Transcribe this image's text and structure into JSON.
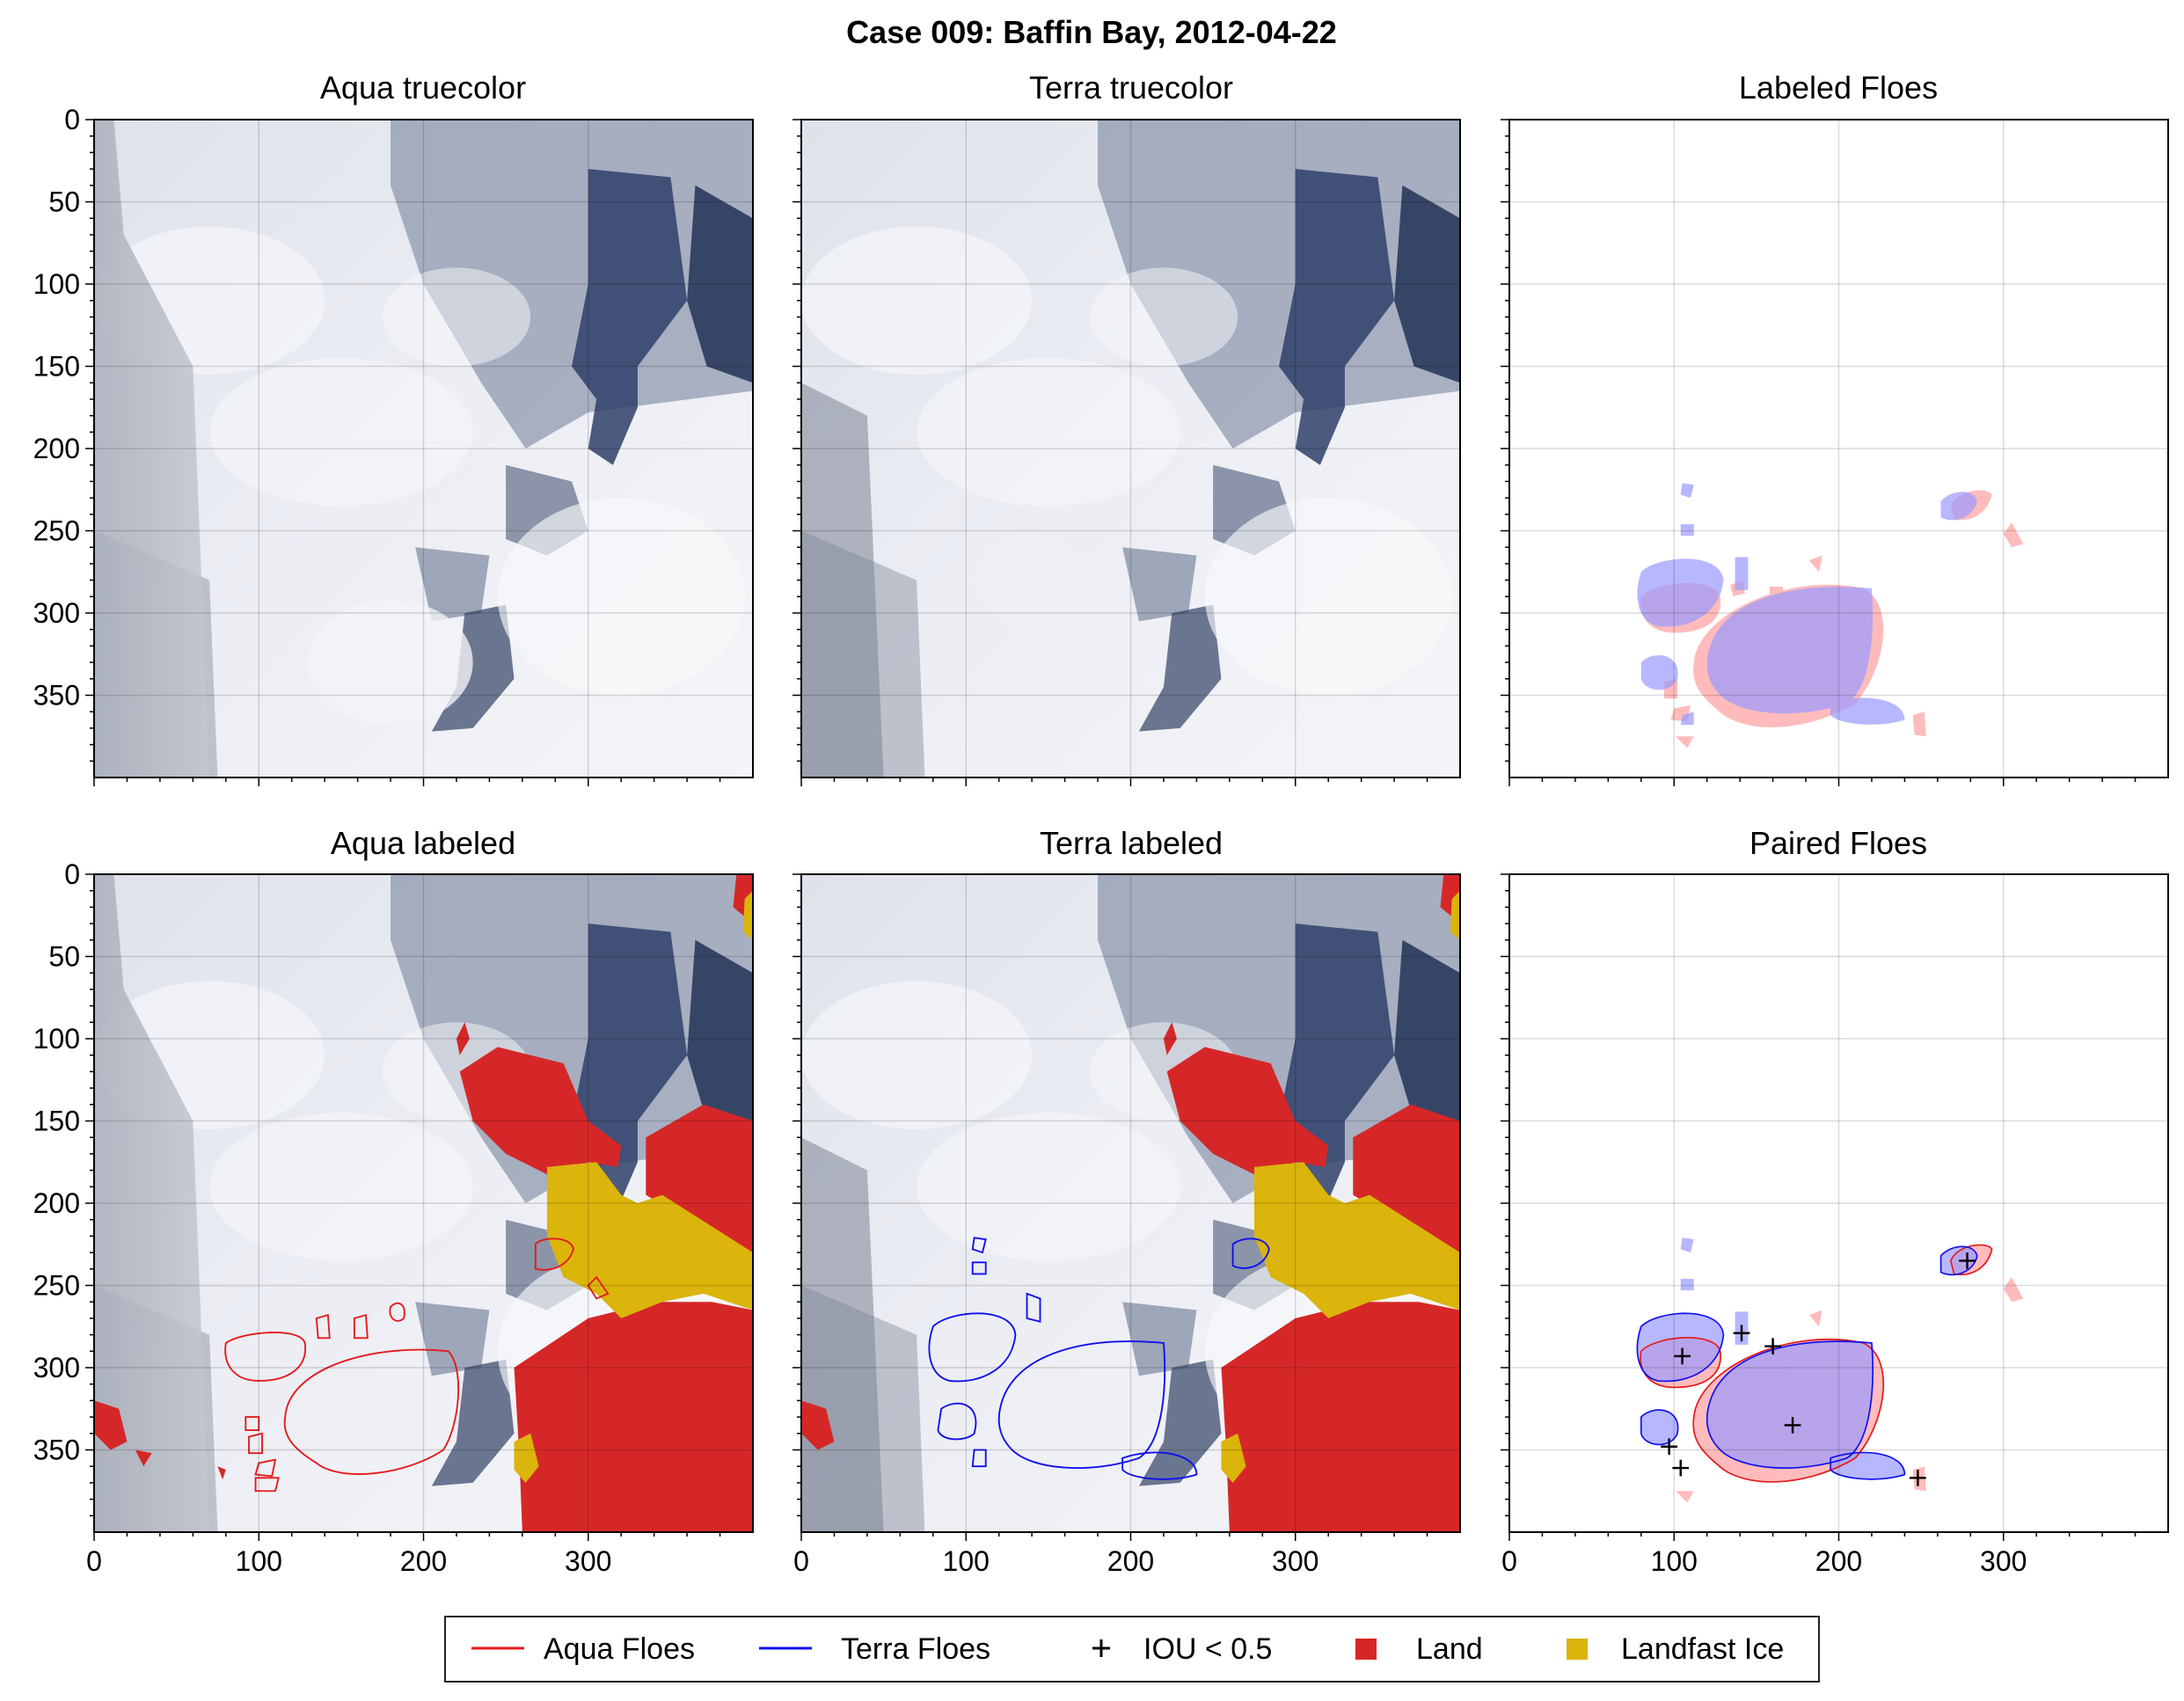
{
  "figure": {
    "title": "Case 009: Baffin Bay, 2012-04-22"
  },
  "colors": {
    "aqua": "#e41a1c",
    "terra": "#1010ee",
    "land": "#d62728",
    "landfast": "#dbb40c",
    "aqua_fill": "#ff9a9a",
    "terra_fill": "#9a9aff",
    "water": "#2a3a5c",
    "ice": "#eef0f5"
  },
  "chart_data": [
    {
      "type": "image",
      "title": "Aqua truecolor",
      "xlim": [
        0,
        400
      ],
      "ylim": [
        400,
        0
      ],
      "xticks": [],
      "yticks": [
        "0",
        "50",
        "100",
        "150",
        "200",
        "250",
        "300",
        "350"
      ],
      "grid": true
    },
    {
      "type": "image",
      "title": "Terra truecolor",
      "xlim": [
        0,
        400
      ],
      "ylim": [
        400,
        0
      ],
      "xticks": [],
      "yticks": [],
      "grid": true
    },
    {
      "type": "map",
      "title": "Labeled Floes",
      "xlim": [
        0,
        400
      ],
      "ylim": [
        400,
        0
      ],
      "xticks": [],
      "yticks": [],
      "grid": true
    },
    {
      "type": "image",
      "title": "Aqua labeled",
      "xlim": [
        0,
        400
      ],
      "ylim": [
        400,
        0
      ],
      "xticks": [
        "0",
        "100",
        "200",
        "300"
      ],
      "yticks": [
        "0",
        "50",
        "100",
        "150",
        "200",
        "250",
        "300",
        "350"
      ],
      "grid": true
    },
    {
      "type": "image",
      "title": "Terra labeled",
      "xlim": [
        0,
        400
      ],
      "ylim": [
        400,
        0
      ],
      "xticks": [
        "0",
        "100",
        "200",
        "300"
      ],
      "yticks": [],
      "grid": true
    },
    {
      "type": "map",
      "title": "Paired Floes",
      "xlim": [
        0,
        400
      ],
      "ylim": [
        400,
        0
      ],
      "xticks": [
        "0",
        "100",
        "200",
        "300"
      ],
      "yticks": [],
      "grid": true,
      "iou_markers": [
        [
          105,
          293
        ],
        [
          141,
          279
        ],
        [
          160,
          287
        ],
        [
          172,
          335
        ],
        [
          97,
          348
        ],
        [
          104,
          361
        ],
        [
          248,
          367
        ],
        [
          278,
          235
        ]
      ]
    }
  ],
  "legend": {
    "placement": "bottom-center",
    "items": [
      {
        "label": "Aqua Floes",
        "kind": "line",
        "color": "#e41a1c"
      },
      {
        "label": "Terra Floes",
        "kind": "line",
        "color": "#1010ee"
      },
      {
        "label": "IOU < 0.5",
        "kind": "plus",
        "color": "#000000"
      },
      {
        "label": "Land",
        "kind": "square",
        "color": "#d62728"
      },
      {
        "label": "Landfast Ice",
        "kind": "square",
        "color": "#dbb40c"
      }
    ]
  }
}
